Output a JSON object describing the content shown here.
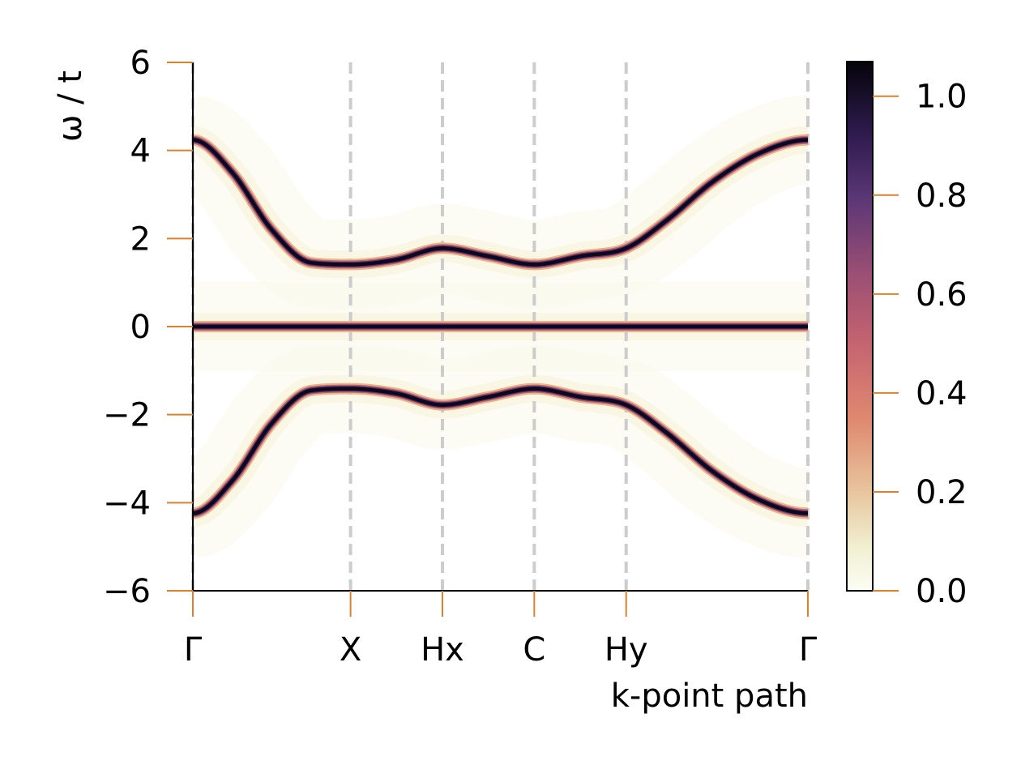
{
  "chart_data": {
    "type": "heatmap",
    "title": "",
    "xlabel": "k-point path",
    "ylabel": "ω / t",
    "x_ticks": [
      {
        "label": "Γ",
        "pos": 0.0
      },
      {
        "label": "X",
        "pos": 1.0
      },
      {
        "label": "Hx",
        "pos": 1.5825
      },
      {
        "label": "C",
        "pos": 2.165
      },
      {
        "label": "Hy",
        "pos": 2.7475
      },
      {
        "label": "Γ",
        "pos": 3.9
      }
    ],
    "xlim": [
      0,
      3.9
    ],
    "ylim": [
      -6,
      6
    ],
    "y_ticks": [
      {
        "value": -6,
        "label": "−6"
      },
      {
        "value": -4,
        "label": "−4"
      },
      {
        "value": -2,
        "label": "−2"
      },
      {
        "value": 0,
        "label": "0"
      },
      {
        "value": 2,
        "label": "2"
      },
      {
        "value": 4,
        "label": "4"
      },
      {
        "value": 6,
        "label": "6"
      }
    ],
    "series": [
      {
        "x": [
          0.0,
          0.25,
          0.5,
          0.75,
          1.0,
          1.29,
          1.5825,
          1.87,
          2.165,
          2.46,
          2.7475,
          3.0,
          3.3,
          3.6,
          3.9
        ],
        "values": [
          4.24,
          3.5,
          2.2,
          1.45,
          1.41,
          1.52,
          1.78,
          1.6,
          1.41,
          1.6,
          1.78,
          2.4,
          3.3,
          3.95,
          4.24
        ]
      },
      {
        "x": [
          0.0,
          3.9
        ],
        "values": [
          0.0,
          0.0
        ]
      },
      {
        "x": [
          0.0,
          0.25,
          0.5,
          0.75,
          1.0,
          1.29,
          1.5825,
          1.87,
          2.165,
          2.46,
          2.7475,
          3.0,
          3.3,
          3.6,
          3.9
        ],
        "values": [
          -4.24,
          -3.5,
          -2.2,
          -1.45,
          -1.41,
          -1.52,
          -1.78,
          -1.6,
          -1.41,
          -1.6,
          -1.78,
          -2.4,
          -3.3,
          -3.95,
          -4.24
        ]
      }
    ],
    "colorbar": {
      "colormap": "magma_r",
      "range": [
        0.0,
        1.07
      ],
      "ticks": [
        {
          "value": 0.0,
          "label": "0.0"
        },
        {
          "value": 0.2,
          "label": "0.2"
        },
        {
          "value": 0.4,
          "label": "0.4"
        },
        {
          "value": 0.6,
          "label": "0.6"
        },
        {
          "value": 0.8,
          "label": "0.8"
        },
        {
          "value": 1.0,
          "label": "1.0"
        }
      ]
    },
    "grid": "vertical dashed lines at high-symmetry points",
    "colors": {
      "tick_color": "#d9822b",
      "vline_color": "#cccccc",
      "band_color": "#0b0a1c",
      "halo_color": "#f7f4de"
    }
  }
}
